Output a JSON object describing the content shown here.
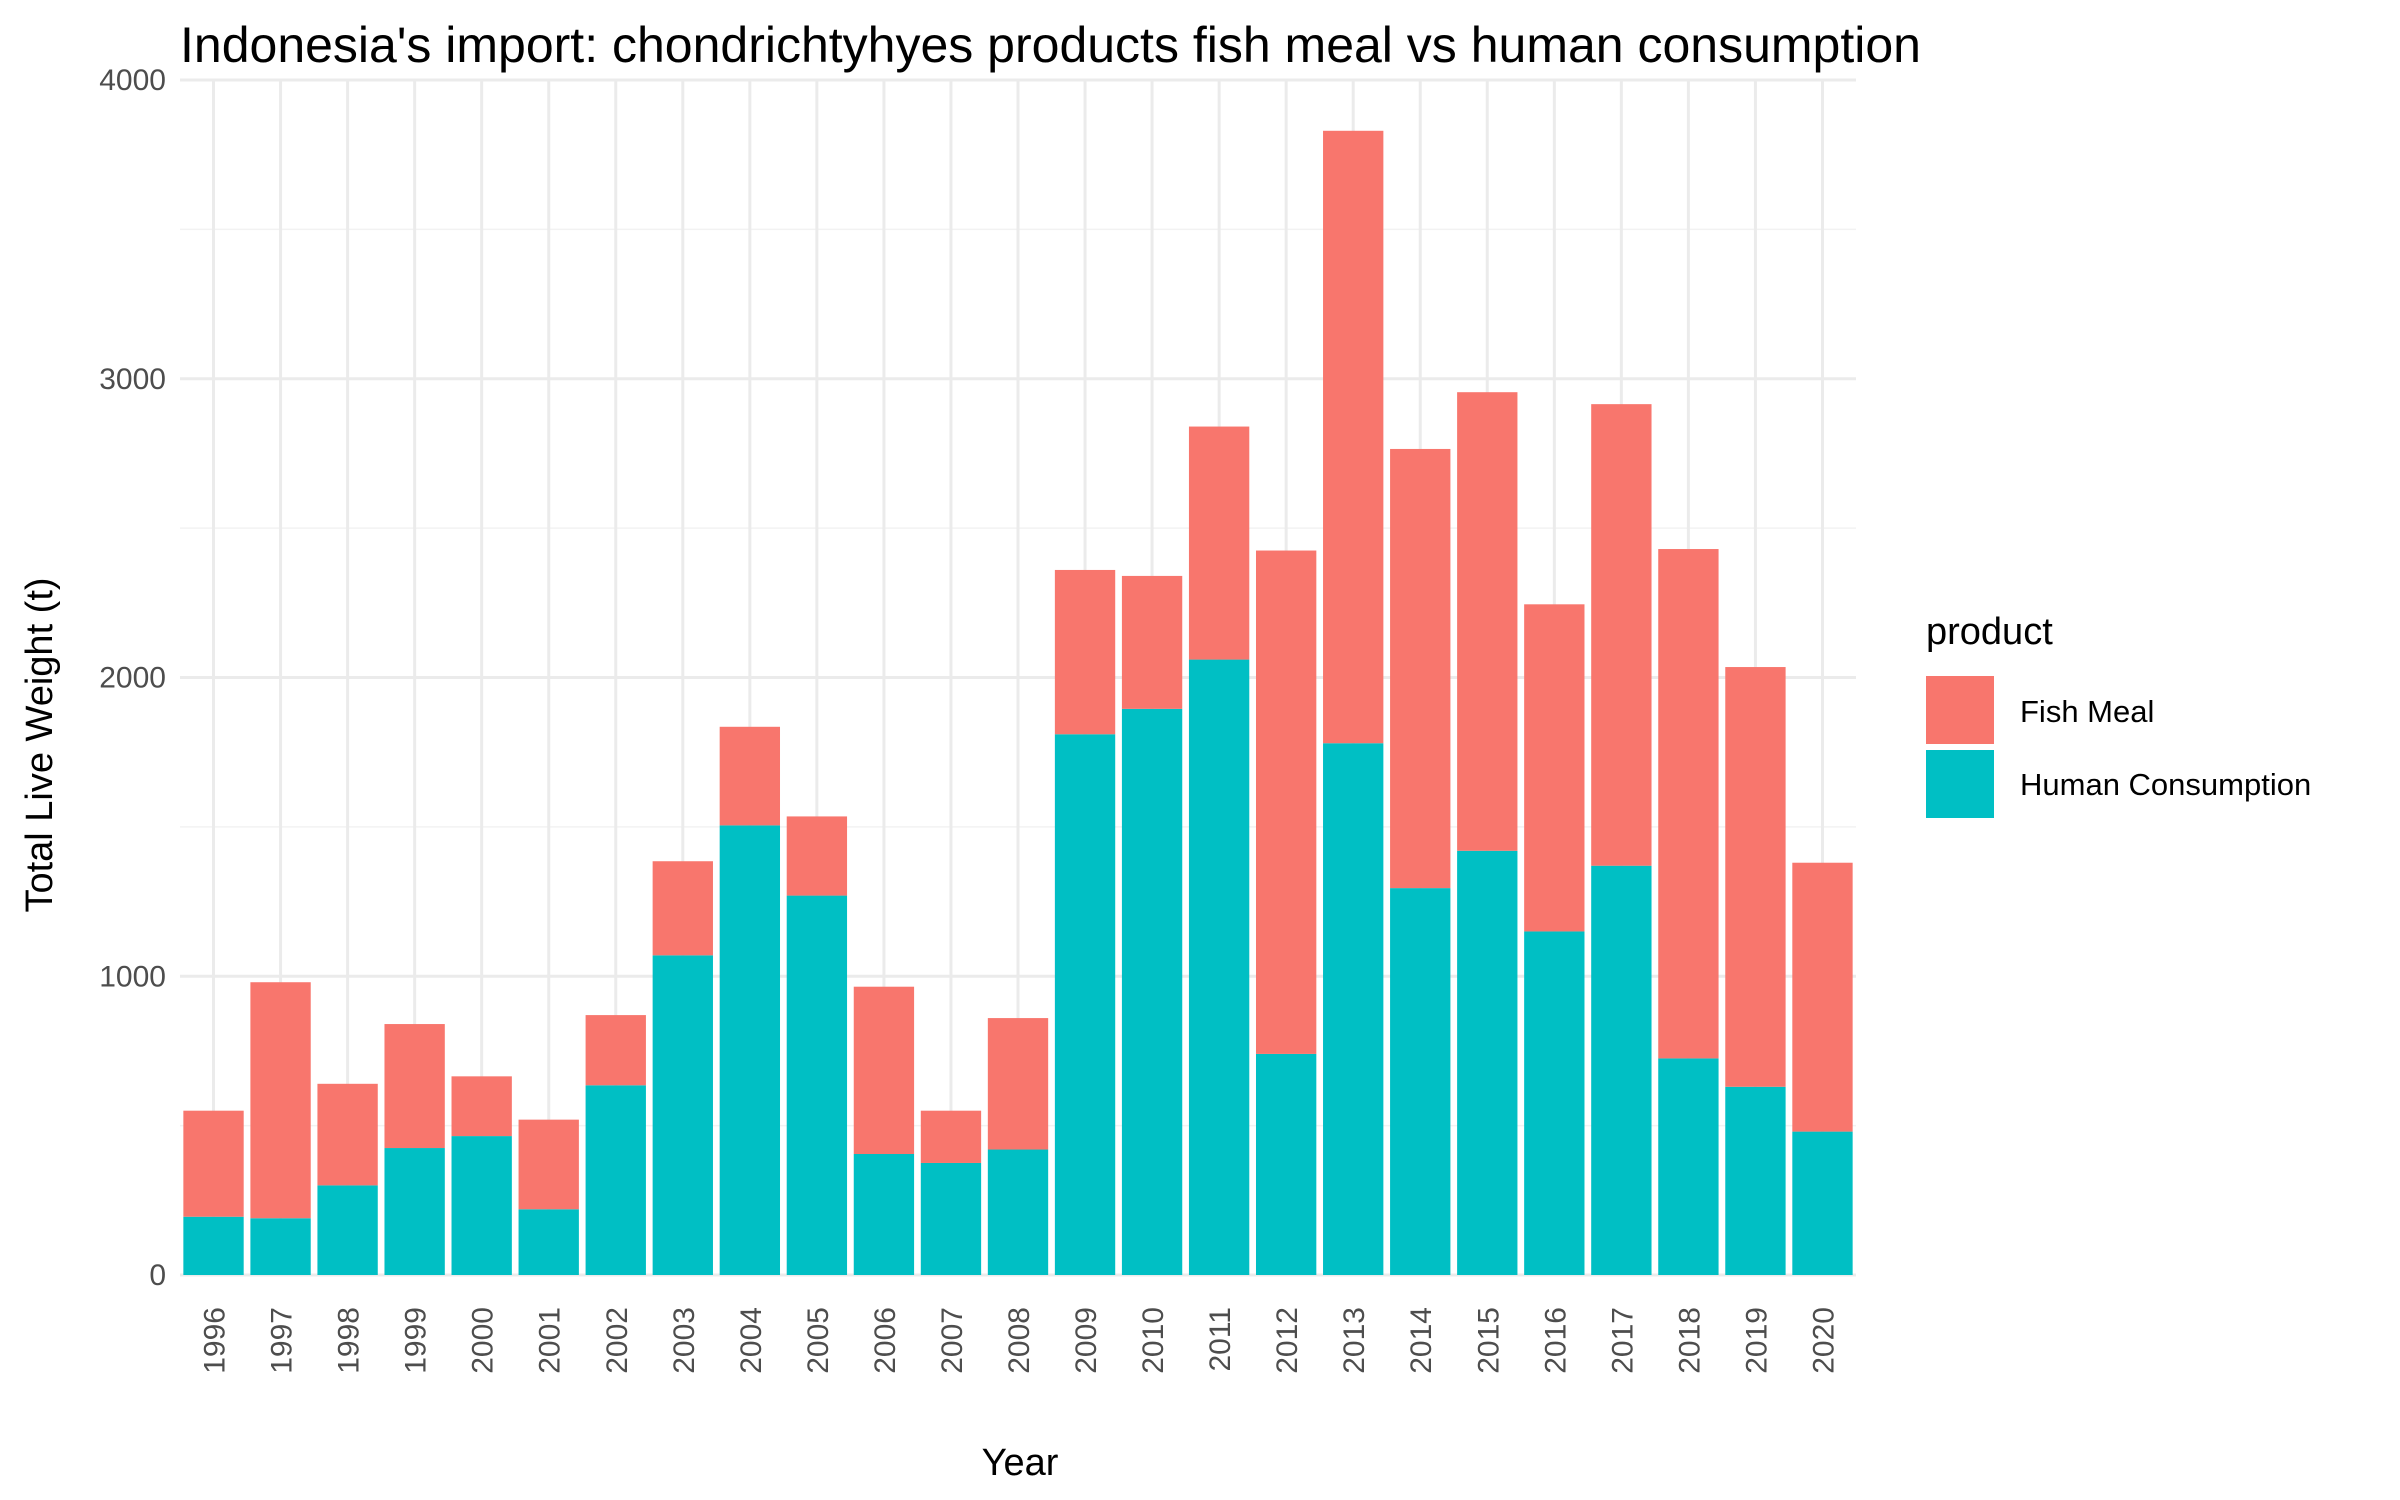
{
  "chart_data": {
    "type": "bar",
    "stacked": true,
    "title": "Indonesia's import: chondrichtyhyes products fish meal vs human consumption",
    "xlabel": "Year",
    "ylabel": "Total Live Weight (t)",
    "ylim": [
      0,
      4000
    ],
    "yticks": [
      0,
      1000,
      2000,
      3000,
      4000
    ],
    "grid": true,
    "legend": {
      "title": "product",
      "position": "right"
    },
    "categories": [
      "1996",
      "1997",
      "1998",
      "1999",
      "2000",
      "2001",
      "2002",
      "2003",
      "2004",
      "2005",
      "2006",
      "2007",
      "2008",
      "2009",
      "2010",
      "2011",
      "2012",
      "2013",
      "2014",
      "2015",
      "2016",
      "2017",
      "2018",
      "2019",
      "2020"
    ],
    "series": [
      {
        "name": "Human Consumption",
        "color": "#00BFC4",
        "values": [
          195,
          190,
          300,
          425,
          465,
          220,
          635,
          1070,
          1505,
          1270,
          405,
          375,
          420,
          1810,
          1895,
          2060,
          740,
          1780,
          1295,
          1420,
          1150,
          1370,
          725,
          630,
          480
        ]
      },
      {
        "name": "Fish Meal",
        "color": "#F8766D",
        "values": [
          355,
          790,
          340,
          415,
          200,
          300,
          235,
          315,
          330,
          265,
          560,
          175,
          440,
          550,
          445,
          780,
          1685,
          2050,
          1470,
          1535,
          1095,
          1545,
          1705,
          1405,
          900
        ]
      }
    ]
  }
}
